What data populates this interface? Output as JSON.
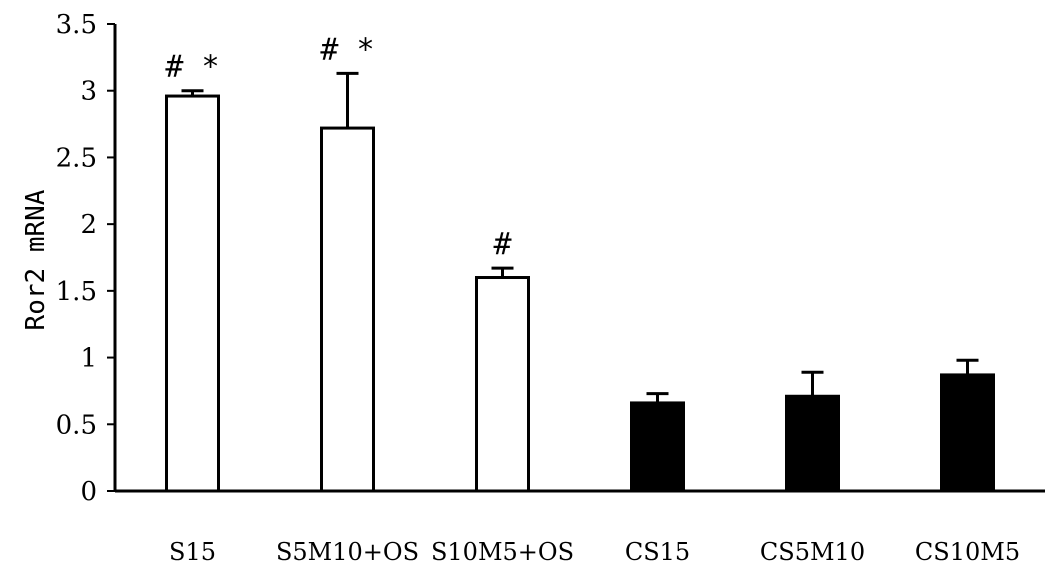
{
  "chart_data": {
    "type": "bar",
    "title": "",
    "xlabel": "",
    "ylabel": "Ror2 mRNA",
    "ylim": [
      0,
      3.5
    ],
    "yticks": [
      "0",
      "0.5",
      "1",
      "1.5",
      "2",
      "2.5",
      "3",
      "3.5"
    ],
    "grid": false,
    "legend": "none",
    "categories": [
      "S15",
      "S5M10+OS",
      "S10M5+OS",
      "CS15",
      "CS5M10",
      "CS10M5"
    ],
    "values": [
      2.96,
      2.72,
      1.6,
      0.66,
      0.71,
      0.87
    ],
    "errors": [
      0.04,
      0.41,
      0.07,
      0.07,
      0.18,
      0.11
    ],
    "annotations": [
      "# *",
      "# *",
      "#",
      "",
      "",
      ""
    ],
    "bar_fills": [
      "#ffffff",
      "#ffffff",
      "#ffffff",
      "#000000",
      "#000000",
      "#000000"
    ],
    "bar_stroke": "#000000"
  }
}
